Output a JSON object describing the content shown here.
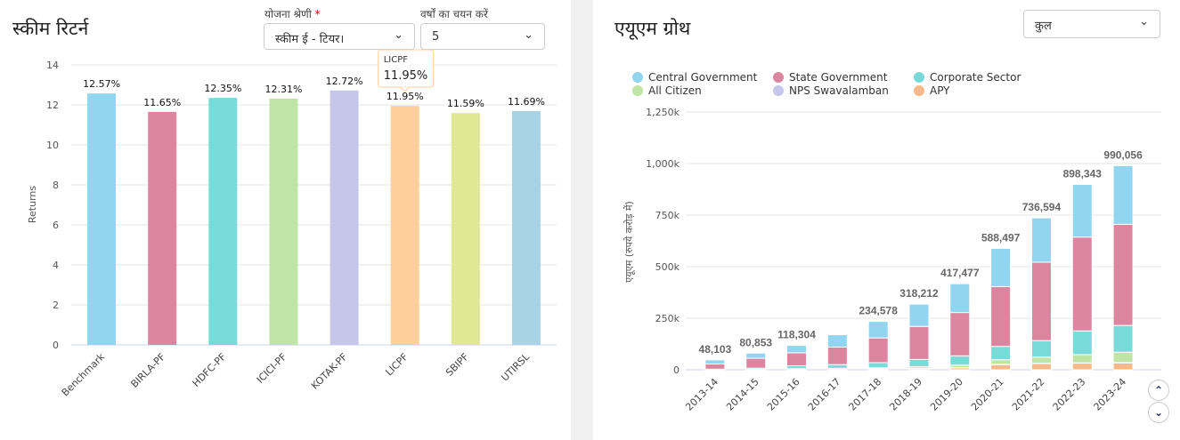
{
  "left": {
    "title": "स्कीम रिटर्न",
    "scheme_label": "योजना श्रेणी",
    "required_mark": "*",
    "scheme_value": "स्कीम ई - टियर।",
    "years_label": "वर्षों का चयन करें",
    "years_value": "5",
    "tooltip": {
      "name": "LICPF",
      "value": "11.95%"
    }
  },
  "right": {
    "title": "एयूएम ग्रोथ",
    "filter_value": "कुल"
  },
  "chart_data": [
    {
      "type": "bar",
      "categories": [
        "Benchmark",
        "BIRLA-PF",
        "HDFC-PF",
        "ICICI-PF",
        "KOTAK-PF",
        "LICPF",
        "SBIPF",
        "UTIRSL"
      ],
      "values": [
        12.57,
        11.65,
        12.35,
        12.31,
        12.72,
        11.95,
        11.59,
        11.69
      ],
      "data_labels": [
        "12.57%",
        "11.65%",
        "12.35%",
        "12.31%",
        "12.72%",
        "11.95%",
        "11.59%",
        "11.69%"
      ],
      "colors": [
        "#91d5f0",
        "#db85a0",
        "#78dbd9",
        "#bfe4a6",
        "#c5c6e9",
        "#fdcf9a",
        "#e1e893",
        "#a8d3e6"
      ],
      "ylabel": "Returns",
      "ylim": [
        0,
        14
      ],
      "yticks": [
        0,
        2,
        4,
        6,
        8,
        10,
        12,
        14
      ],
      "grid": true
    },
    {
      "type": "bar",
      "stacked": true,
      "categories": [
        "2013-14",
        "2014-15",
        "2015-16",
        "2016-17",
        "2017-18",
        "2018-19",
        "2019-20",
        "2020-21",
        "2021-22",
        "2022-23",
        "2023-24"
      ],
      "series": [
        {
          "name": "Central Government",
          "color": "#91d5f0",
          "values": [
            20000,
            25000,
            36000,
            60000,
            80000,
            108000,
            140000,
            185000,
            215000,
            255000,
            285000
          ]
        },
        {
          "name": "State Government",
          "color": "#db85a0",
          "values": [
            25000,
            48000,
            63000,
            85000,
            120000,
            160000,
            210000,
            290000,
            380000,
            455000,
            490000
          ]
        },
        {
          "name": "Corporate Sector",
          "color": "#78dbd9",
          "values": [
            3000,
            6000,
            14000,
            18000,
            25000,
            35000,
            45000,
            65000,
            80000,
            115000,
            130000
          ]
        },
        {
          "name": "All Citizen",
          "color": "#bfe4a6",
          "values": [
            100,
            1000,
            2000,
            3000,
            5000,
            8000,
            12000,
            22000,
            30000,
            40000,
            50000
          ]
        },
        {
          "name": "NPS Swavalamban",
          "color": "#c5c6e9",
          "values": [
            0,
            500,
            1000,
            1500,
            1500,
            1500,
            1500,
            1500,
            1500,
            1500,
            1500
          ]
        },
        {
          "name": "APY",
          "color": "#f8b98a",
          "values": [
            0,
            300,
            2300,
            2500,
            3000,
            5700,
            9000,
            25000,
            30000,
            32000,
            33500
          ]
        }
      ],
      "total_labels": [
        "48,103",
        "80,853",
        "118,304",
        "",
        "234,578",
        "318,212",
        "417,477",
        "588,497",
        "736,594",
        "898,343",
        "990,056"
      ],
      "ylabel": "एयूएम (रुपये करोड़ में)",
      "ylim": [
        0,
        1250000
      ],
      "ytick_labels": [
        "0",
        "250k",
        "500k",
        "750k",
        "1,000k",
        "1,250k"
      ],
      "legend": "top",
      "grid": true
    }
  ]
}
